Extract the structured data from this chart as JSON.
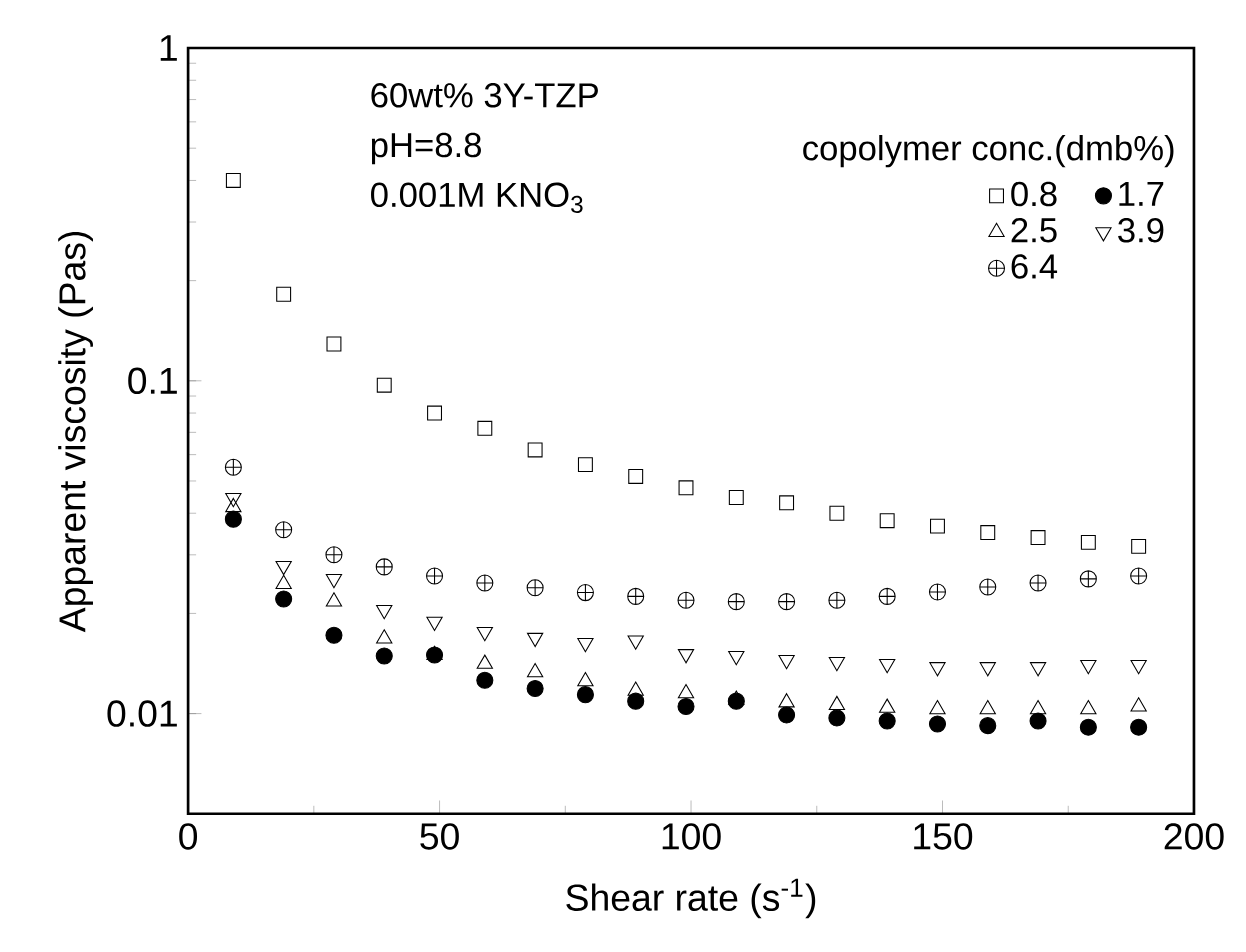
{
  "chart_data": {
    "type": "scatter",
    "xlabel": "Shear rate (s$^{-1}$)",
    "ylabel": "Apparent viscosity (Pas)",
    "legend_title": "copolymer conc.(dmb%)",
    "annotations": [
      "60wt% 3Y-TZP",
      "pH=8.8",
      "0.001M KNO$_{3}$"
    ],
    "x": [
      9,
      19,
      29,
      39,
      49,
      59,
      69,
      79,
      89,
      99,
      109,
      119,
      129,
      139,
      149,
      159,
      169,
      179,
      189
    ],
    "xlim": [
      0,
      200
    ],
    "xticks": [
      0,
      50,
      100,
      150,
      200
    ],
    "ylim": [
      0.005,
      1
    ],
    "yticks": [
      0.01,
      0.1,
      1
    ],
    "log": "y",
    "grid": false,
    "legend": "top right",
    "series": [
      {
        "name": "0.8",
        "color": "#000000",
        "marker": "square",
        "values": [
          0.4,
          0.182,
          0.129,
          0.097,
          0.08,
          0.072,
          0.062,
          0.056,
          0.0516,
          0.0477,
          0.0446,
          0.043,
          0.04,
          0.038,
          0.0366,
          0.035,
          0.0338,
          0.0327,
          0.0318
        ]
      },
      {
        "name": "1.7",
        "color": "#000000",
        "marker": "circle",
        "values": [
          0.0384,
          0.0221,
          0.0172,
          0.0149,
          0.015,
          0.0126,
          0.0119,
          0.0114,
          0.0109,
          0.0105,
          0.0109,
          0.0099,
          0.0097,
          0.0095,
          0.0093,
          0.0092,
          0.0095,
          0.0091,
          0.0091
        ]
      },
      {
        "name": "2.5",
        "color": "#000000",
        "marker": "triangle",
        "values": [
          0.0417,
          0.0245,
          0.0217,
          0.0168,
          0.015,
          0.0141,
          0.0133,
          0.0125,
          0.0117,
          0.0115,
          0.011,
          0.0108,
          0.0106,
          0.0104,
          0.0103,
          0.0103,
          0.0103,
          0.0103,
          0.0105
        ]
      },
      {
        "name": "3.9",
        "color": "#000000",
        "marker": "triangle",
        "values": [
          0.0445,
          0.0278,
          0.0254,
          0.0205,
          0.0189,
          0.0176,
          0.0169,
          0.0163,
          0.0166,
          0.0151,
          0.0149,
          0.0145,
          0.0143,
          0.0141,
          0.0138,
          0.0138,
          0.0138,
          0.014,
          0.014
        ]
      },
      {
        "name": "6.4",
        "color": "#000000",
        "marker": "cross",
        "values": [
          0.055,
          0.0357,
          0.03,
          0.0276,
          0.0259,
          0.0247,
          0.0239,
          0.0231,
          0.0225,
          0.0219,
          0.0217,
          0.0217,
          0.0219,
          0.0225,
          0.0232,
          0.024,
          0.0247,
          0.0254,
          0.0259
        ]
      }
    ]
  }
}
